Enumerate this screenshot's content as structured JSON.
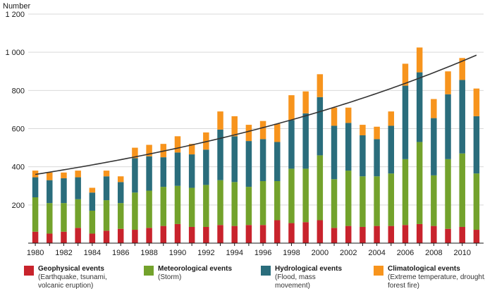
{
  "chart_data": {
    "type": "bar",
    "stacked": true,
    "ylabel": "Number",
    "ylim": [
      0,
      1200
    ],
    "yticks": [
      {
        "value": 200,
        "label": "200"
      },
      {
        "value": 400,
        "label": "400"
      },
      {
        "value": 600,
        "label": "600"
      },
      {
        "value": 800,
        "label": "800"
      },
      {
        "value": 1000,
        "label": "1 000"
      },
      {
        "value": 1200,
        "label": "1 200"
      }
    ],
    "grid": true,
    "categories": [
      "1980",
      "1981",
      "1982",
      "1983",
      "1984",
      "1985",
      "1986",
      "1987",
      "1988",
      "1989",
      "1990",
      "1991",
      "1992",
      "1993",
      "1994",
      "1995",
      "1996",
      "1997",
      "1998",
      "1999",
      "2000",
      "2001",
      "2002",
      "2003",
      "2004",
      "2005",
      "2006",
      "2007",
      "2008",
      "2009",
      "2010",
      "2011"
    ],
    "xtick_labels": [
      "1980",
      "1982",
      "1984",
      "1986",
      "1988",
      "1990",
      "1992",
      "1994",
      "1996",
      "1998",
      "2000",
      "2002",
      "2004",
      "2006",
      "2008",
      "2010"
    ],
    "series": [
      {
        "name": "Geophysical events",
        "description": "(Earthquake, tsunami, volcanic eruption)",
        "color": "#c8232c",
        "values": [
          60,
          50,
          60,
          80,
          50,
          65,
          75,
          70,
          80,
          90,
          100,
          85,
          85,
          95,
          90,
          95,
          95,
          120,
          105,
          110,
          120,
          80,
          90,
          85,
          90,
          90,
          95,
          100,
          90,
          75,
          85,
          70
        ]
      },
      {
        "name": "Meteorological events",
        "description": "(Storm)",
        "color": "#73a22c",
        "values": [
          180,
          160,
          150,
          150,
          120,
          160,
          135,
          195,
          195,
          205,
          200,
          205,
          220,
          235,
          230,
          200,
          230,
          205,
          285,
          280,
          340,
          255,
          290,
          265,
          260,
          275,
          345,
          430,
          265,
          365,
          385,
          295
        ]
      },
      {
        "name": "Hydrological events",
        "description": "(Flood, mass movement)",
        "color": "#2a6d7c",
        "values": [
          105,
          120,
          130,
          115,
          95,
          125,
          110,
          180,
          180,
          155,
          175,
          175,
          185,
          265,
          240,
          240,
          220,
          205,
          255,
          290,
          305,
          280,
          250,
          215,
          195,
          250,
          385,
          365,
          300,
          340,
          385,
          300
        ]
      },
      {
        "name": "Climatological events",
        "description": "(Extreme temperature, drought, forest fire)",
        "color": "#f7941d",
        "values": [
          35,
          40,
          30,
          35,
          25,
          30,
          30,
          55,
          60,
          70,
          85,
          55,
          90,
          95,
          105,
          85,
          95,
          95,
          130,
          115,
          120,
          95,
          80,
          55,
          65,
          75,
          115,
          130,
          100,
          120,
          115,
          145
        ]
      }
    ],
    "trendline": {
      "type": "exponential",
      "start": {
        "x": "1980",
        "y": 360
      },
      "end": {
        "x": "2011",
        "y": 985
      },
      "color": "#333333"
    }
  }
}
